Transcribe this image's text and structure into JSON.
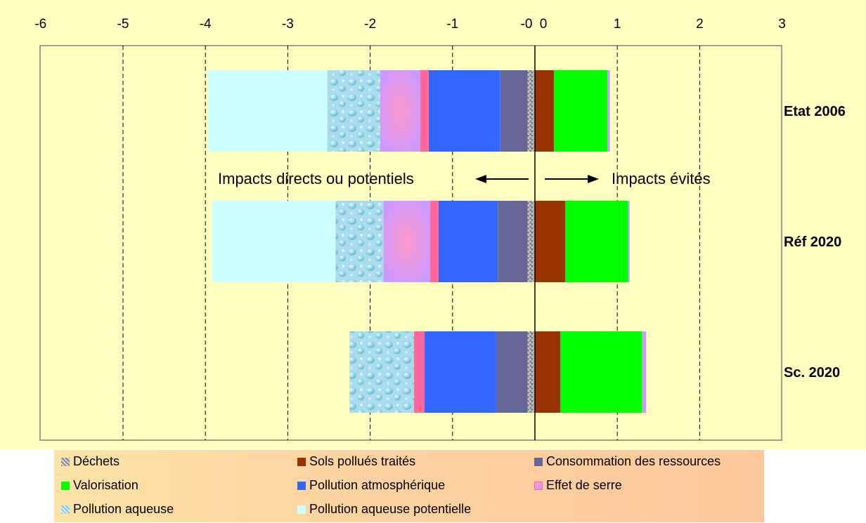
{
  "chart_data": {
    "type": "bar",
    "orientation": "horizontal",
    "stacked": true,
    "xlim": [
      -6,
      3
    ],
    "x_ticks": [
      "-6",
      "-5",
      "-4",
      "-3",
      "-2",
      "-1",
      "-0",
      "0",
      "1",
      "2",
      "3"
    ],
    "grid": "vertical dashed",
    "categories": [
      "Etat 2006",
      "Réf 2020",
      "Sc. 2020"
    ],
    "series": [
      {
        "name": "Déchets",
        "color": "#a8a8a8",
        "values": [
          -0.09,
          -0.09,
          -0.09
        ]
      },
      {
        "name": "Consommation des ressources",
        "color": "#666699",
        "values": [
          -0.33,
          -0.36,
          -0.38
        ]
      },
      {
        "name": "Pollution atmosphérique",
        "color": "#3366ff",
        "values": [
          -0.87,
          -0.72,
          -0.87
        ]
      },
      {
        "name": "Effet de serre",
        "color": "#ff6699",
        "values": [
          -0.12,
          -0.12,
          -0.13
        ]
      },
      {
        "name": "Pollution aqueuse",
        "color": "#a9dced",
        "values": [
          -0.64,
          -0.58,
          -0.78
        ]
      },
      {
        "name": "Pollution aqueuse potentielle",
        "color": "#ccffff",
        "values": [
          -1.45,
          -1.5,
          0
        ]
      },
      {
        "name": "Sols pollués traités",
        "color": "#993300",
        "values": [
          0.23,
          0.37,
          0.31
        ]
      },
      {
        "name": "Valorisation",
        "color": "#00ff00",
        "values": [
          0.65,
          0.76,
          0.99
        ]
      }
    ],
    "purple_segments": [
      {
        "category": "Etat 2006",
        "from": -1.88,
        "to": -1.39
      },
      {
        "category": "Réf 2020",
        "from": -1.84,
        "to": -1.27
      },
      {
        "category": "Sc. 2020",
        "from": 0,
        "to": 0
      }
    ],
    "end_caps": [
      {
        "category": "Etat 2006",
        "from": 0.88,
        "to": 0.91
      },
      {
        "category": "Réf 2020",
        "from": 1.13,
        "to": 1.15
      },
      {
        "category": "Sc. 2020",
        "from": 1.3,
        "to": 1.35
      }
    ],
    "annotations": {
      "left": "Impacts directs ou potentiels",
      "right": "Impacts évités"
    },
    "legend": {
      "placement": "bottom",
      "rows": [
        [
          "Déchets",
          "Sols pollués traités",
          "Consommation des ressources"
        ],
        [
          "Valorisation",
          "Pollution atmosphérique",
          "Effet de serre"
        ],
        [
          "Pollution aqueuse",
          "Pollution aqueuse potentielle"
        ]
      ]
    }
  }
}
